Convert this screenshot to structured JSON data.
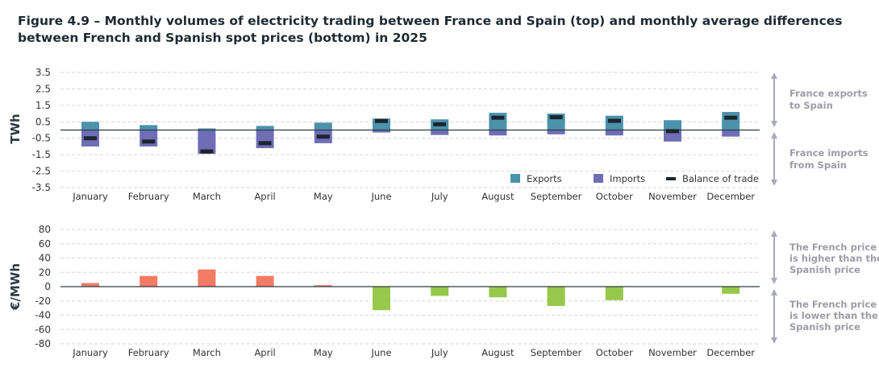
{
  "title": "Figure 4.9 – Monthly volumes of electricity trading between France and Spain (top) and monthly average differences between French and Spanish spot prices (bottom) in 2025",
  "colors": {
    "exports": "#4a93ab",
    "imports": "#6f6db6",
    "balance": "#1c252c",
    "positive": "#f27b64",
    "negative": "#97c84b",
    "annotation": "#9c9ca8",
    "arrow": "#a9a9bd"
  },
  "chart_data": [
    {
      "type": "bar",
      "ylabel": "TWh",
      "ylim": [
        -3.5,
        3.5
      ],
      "yticks": [
        "3.5",
        "2.5",
        "1.5",
        "0.5",
        "-0.5",
        "-1.5",
        "-2.5",
        "-3.5"
      ],
      "grid": true,
      "legend_placement": "bottom-right",
      "categories": [
        "January",
        "February",
        "March",
        "April",
        "May",
        "June",
        "July",
        "August",
        "September",
        "October",
        "November",
        "December"
      ],
      "series": [
        {
          "name": "Exports",
          "values": [
            0.5,
            0.3,
            0.1,
            0.25,
            0.45,
            0.7,
            0.65,
            1.05,
            1.0,
            0.87,
            0.6,
            1.1
          ]
        },
        {
          "name": "Imports",
          "values": [
            -1.0,
            -1.0,
            -1.45,
            -1.1,
            -0.8,
            -0.15,
            -0.3,
            -0.33,
            -0.26,
            -0.33,
            -0.7,
            -0.4
          ]
        },
        {
          "name": "Balance of trade",
          "values": [
            -0.5,
            -0.7,
            -1.3,
            -0.8,
            -0.4,
            0.55,
            0.35,
            0.75,
            0.78,
            0.56,
            -0.07,
            0.75
          ]
        }
      ],
      "annotations": [
        {
          "lines": [
            "France exports",
            "to Spain"
          ]
        },
        {
          "lines": [
            "France imports",
            "from Spain"
          ]
        }
      ]
    },
    {
      "type": "bar",
      "ylabel": "€/MWh",
      "ylim": [
        -80,
        80
      ],
      "yticks": [
        "80",
        "60",
        "40",
        "20",
        "0",
        "-20",
        "-40",
        "-60",
        "-80"
      ],
      "grid": true,
      "categories": [
        "January",
        "February",
        "March",
        "April",
        "May",
        "June",
        "July",
        "August",
        "September",
        "October",
        "November",
        "December"
      ],
      "values": [
        5,
        15,
        24,
        15,
        2,
        -33,
        -13,
        -15,
        -27,
        -19,
        0,
        -10
      ],
      "annotations": [
        {
          "lines": [
            "The French price",
            "is higher than the",
            "Spanish price"
          ]
        },
        {
          "lines": [
            "The French price",
            "is lower than the",
            "Spanish price"
          ]
        }
      ]
    }
  ]
}
